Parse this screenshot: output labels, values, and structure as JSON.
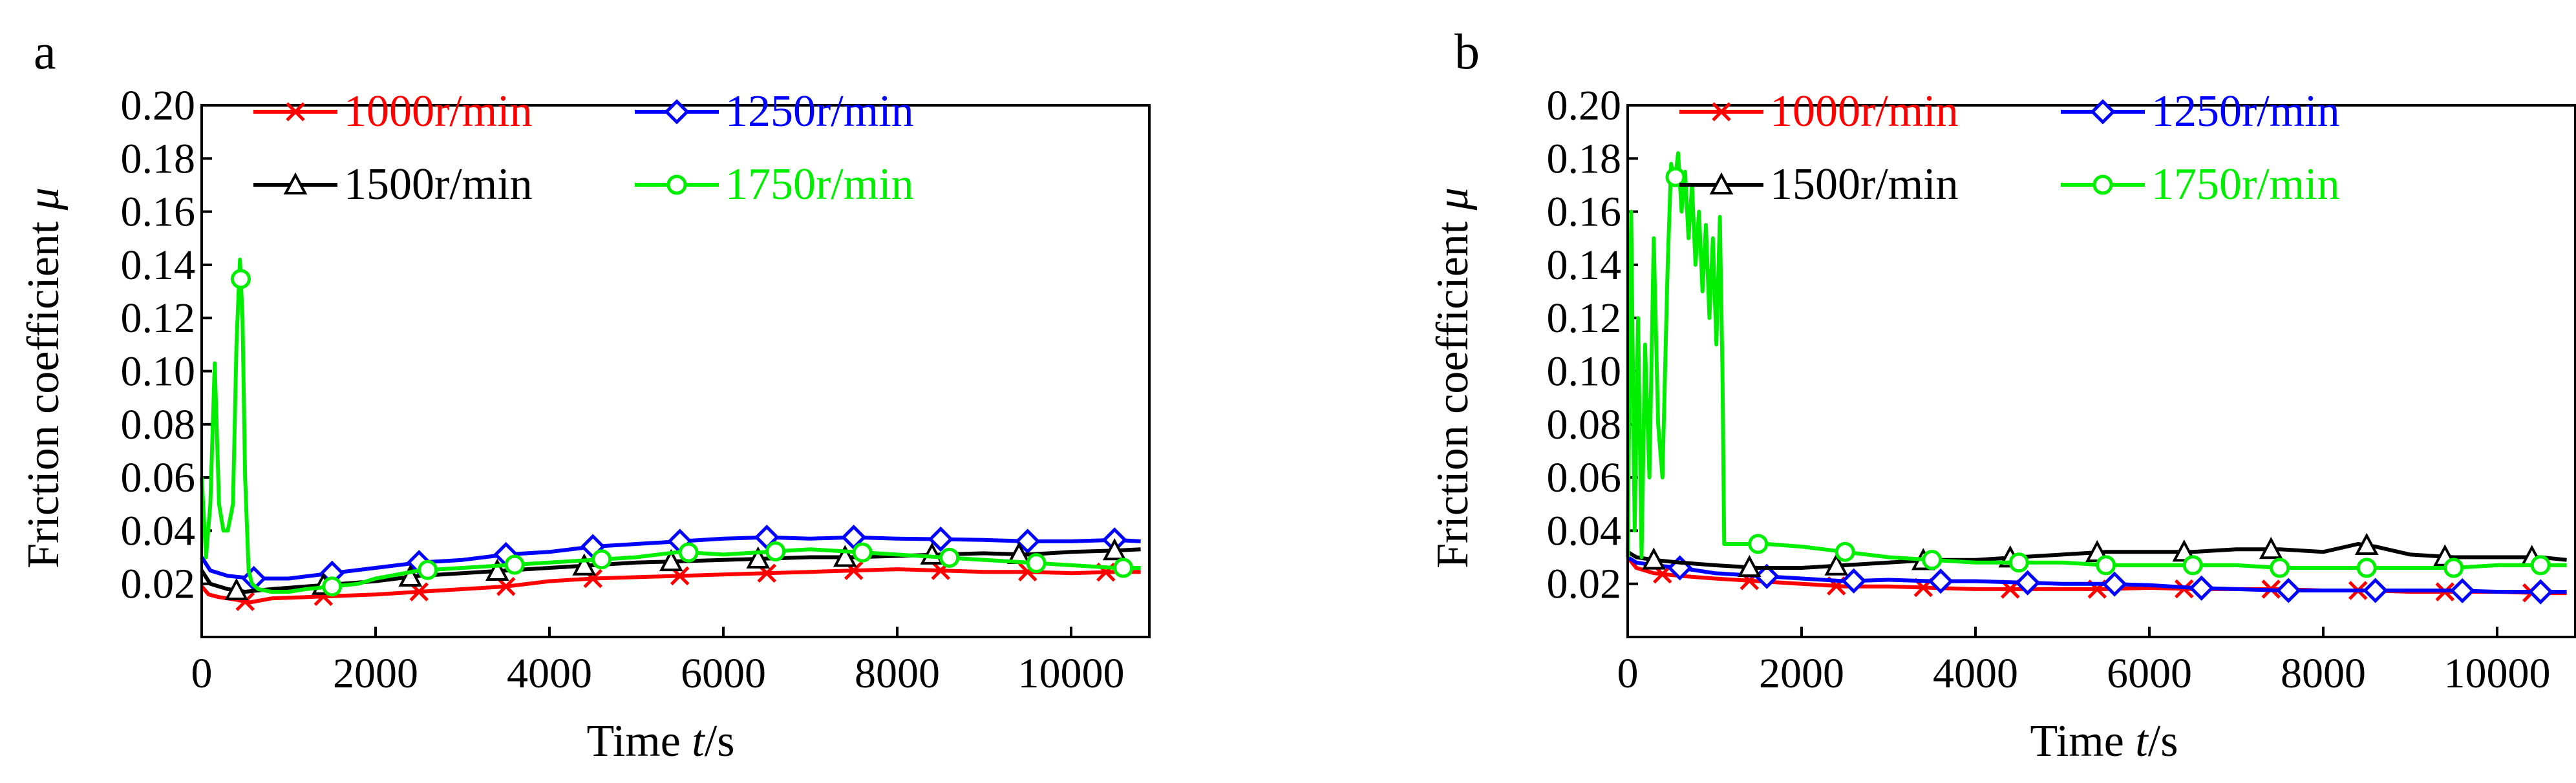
{
  "figure": {
    "panels": [
      "a",
      "b"
    ]
  },
  "chart_data": [
    {
      "panel": "a",
      "type": "line",
      "title": "",
      "xlabel": "Time t/s",
      "xlabel_prefix": "Time ",
      "xlabel_var": "t",
      "xlabel_unit": "/s",
      "ylabel": "Friction coefficient μ",
      "ylabel_prefix": "Friction coefficient ",
      "ylabel_var": "μ",
      "xlim": [
        0,
        10900
      ],
      "ylim": [
        0,
        0.2
      ],
      "xticks": [
        0,
        2000,
        4000,
        6000,
        8000,
        10000
      ],
      "xtick_labels": [
        "0",
        "2000",
        "4000",
        "6000",
        "8000",
        "10000"
      ],
      "yticks": [
        0.02,
        0.04,
        0.06,
        0.08,
        0.1,
        0.12,
        0.14,
        0.16,
        0.18,
        0.2
      ],
      "ytick_labels": [
        "0.02",
        "0.04",
        "0.06",
        "0.08",
        "0.10",
        "0.12",
        "0.14",
        "0.16",
        "0.18",
        "0.20"
      ],
      "legend_position": "top",
      "series": [
        {
          "name": "1000r/min",
          "color": "#ff0000",
          "marker": "x",
          "x": [
            0,
            80,
            200,
            400,
            550,
            800,
            1200,
            1600,
            2000,
            2500,
            3000,
            3500,
            4000,
            4500,
            5000,
            5500,
            6000,
            6500,
            7000,
            7500,
            8000,
            8500,
            9000,
            9500,
            10000,
            10500,
            10800
          ],
          "values": [
            0.019,
            0.016,
            0.015,
            0.014,
            0.013,
            0.0145,
            0.015,
            0.0155,
            0.016,
            0.017,
            0.018,
            0.019,
            0.021,
            0.022,
            0.0225,
            0.023,
            0.0235,
            0.024,
            0.0245,
            0.025,
            0.0255,
            0.025,
            0.0245,
            0.0245,
            0.024,
            0.0245,
            0.0245
          ],
          "marker_x": [
            500,
            1400,
            2500,
            3500,
            4500,
            5500,
            6500,
            7500,
            8500,
            9500,
            10400
          ]
        },
        {
          "name": "1250r/min",
          "color": "#0000ff",
          "marker": "diamond",
          "x": [
            0,
            100,
            300,
            600,
            1000,
            1500,
            2000,
            2500,
            3000,
            3500,
            4000,
            4500,
            5000,
            5500,
            6000,
            6500,
            7000,
            7500,
            8000,
            8500,
            9000,
            9500,
            10000,
            10500,
            10800
          ],
          "values": [
            0.03,
            0.025,
            0.023,
            0.022,
            0.022,
            0.024,
            0.026,
            0.028,
            0.029,
            0.031,
            0.032,
            0.034,
            0.035,
            0.036,
            0.037,
            0.0375,
            0.037,
            0.0375,
            0.037,
            0.0368,
            0.0365,
            0.036,
            0.036,
            0.0365,
            0.036
          ],
          "marker_x": [
            600,
            1500,
            2500,
            3500,
            4500,
            5500,
            6500,
            7500,
            8500,
            9500,
            10500
          ]
        },
        {
          "name": "1500r/min",
          "color": "#000000",
          "marker": "triangle",
          "x": [
            0,
            100,
            300,
            500,
            800,
            1200,
            1600,
            2000,
            2500,
            3000,
            3500,
            4000,
            4500,
            5000,
            5500,
            6000,
            6500,
            7000,
            7500,
            8000,
            8500,
            9000,
            9500,
            10000,
            10500,
            10800
          ],
          "values": [
            0.025,
            0.02,
            0.018,
            0.017,
            0.018,
            0.019,
            0.02,
            0.021,
            0.023,
            0.024,
            0.025,
            0.026,
            0.027,
            0.028,
            0.0285,
            0.029,
            0.0295,
            0.03,
            0.03,
            0.0305,
            0.031,
            0.0315,
            0.031,
            0.032,
            0.0325,
            0.033
          ],
          "marker_x": [
            400,
            1400,
            2400,
            3400,
            4400,
            5400,
            6400,
            7400,
            8400,
            9400,
            10500
          ]
        },
        {
          "name": "1750r/min",
          "color": "#00ee00",
          "marker": "circle",
          "x": [
            0,
            50,
            100,
            150,
            200,
            250,
            300,
            330,
            360,
            400,
            440,
            470,
            500,
            540,
            580,
            650,
            800,
            1000,
            1200,
            1500,
            1800,
            2000,
            2500,
            3000,
            3500,
            4000,
            4500,
            5000,
            5500,
            6000,
            6500,
            7000,
            7500,
            8000,
            8500,
            9000,
            9500,
            10000,
            10500,
            10800
          ],
          "values": [
            0.06,
            0.03,
            0.05,
            0.103,
            0.05,
            0.04,
            0.04,
            0.045,
            0.05,
            0.11,
            0.142,
            0.12,
            0.06,
            0.025,
            0.02,
            0.018,
            0.017,
            0.017,
            0.018,
            0.019,
            0.02,
            0.022,
            0.025,
            0.026,
            0.027,
            0.028,
            0.029,
            0.03,
            0.032,
            0.031,
            0.032,
            0.033,
            0.032,
            0.031,
            0.03,
            0.029,
            0.028,
            0.027,
            0.026,
            0.026
          ],
          "marker_x": [
            450,
            1500,
            2600,
            3600,
            4600,
            5600,
            6600,
            7600,
            8600,
            9600,
            10600
          ]
        }
      ]
    },
    {
      "panel": "b",
      "type": "line",
      "title": "",
      "xlabel": "Time t/s",
      "xlabel_prefix": "Time ",
      "xlabel_var": "t",
      "xlabel_unit": "/s",
      "ylabel": "Friction coefficient μ",
      "ylabel_prefix": "Friction coefficient ",
      "ylabel_var": "μ",
      "xlim": [
        0,
        10900
      ],
      "ylim": [
        0,
        0.2
      ],
      "xticks": [
        0,
        2000,
        4000,
        6000,
        8000,
        10000
      ],
      "xtick_labels": [
        "0",
        "2000",
        "4000",
        "6000",
        "8000",
        "10000"
      ],
      "yticks": [
        0.02,
        0.04,
        0.06,
        0.08,
        0.1,
        0.12,
        0.14,
        0.16,
        0.18,
        0.2
      ],
      "ytick_labels": [
        "0.02",
        "0.04",
        "0.06",
        "0.08",
        "0.10",
        "0.12",
        "0.14",
        "0.16",
        "0.18",
        "0.20"
      ],
      "legend_position": "top",
      "series": [
        {
          "name": "1000r/min",
          "color": "#ff0000",
          "marker": "x",
          "x": [
            0,
            100,
            300,
            600,
            1000,
            1500,
            2000,
            2500,
            3000,
            3500,
            4000,
            4500,
            5000,
            5500,
            6000,
            6500,
            7000,
            7500,
            8000,
            8500,
            9000,
            9500,
            10000,
            10500,
            10800
          ],
          "values": [
            0.03,
            0.026,
            0.024,
            0.023,
            0.022,
            0.021,
            0.02,
            0.019,
            0.019,
            0.0185,
            0.018,
            0.018,
            0.018,
            0.018,
            0.0185,
            0.018,
            0.018,
            0.018,
            0.0175,
            0.0175,
            0.017,
            0.017,
            0.017,
            0.0165,
            0.0165
          ],
          "marker_x": [
            400,
            1400,
            2400,
            3400,
            4400,
            5400,
            6400,
            7400,
            8400,
            9400,
            10400
          ]
        },
        {
          "name": "1250r/min",
          "color": "#0000ff",
          "marker": "diamond",
          "x": [
            0,
            100,
            300,
            600,
            1000,
            1500,
            2000,
            2500,
            3000,
            3500,
            4000,
            4500,
            5000,
            5500,
            6000,
            6500,
            7000,
            7500,
            8000,
            8500,
            9000,
            9500,
            10000,
            10500,
            10800
          ],
          "values": [
            0.03,
            0.028,
            0.027,
            0.026,
            0.024,
            0.023,
            0.022,
            0.021,
            0.0215,
            0.021,
            0.021,
            0.0205,
            0.02,
            0.02,
            0.0195,
            0.0185,
            0.018,
            0.0175,
            0.0175,
            0.0175,
            0.0175,
            0.0175,
            0.017,
            0.017,
            0.017
          ],
          "marker_x": [
            600,
            1600,
            2600,
            3600,
            4600,
            5600,
            6600,
            7600,
            8600,
            9600,
            10500
          ]
        },
        {
          "name": "1500r/min",
          "color": "#000000",
          "marker": "triangle",
          "x": [
            0,
            100,
            300,
            600,
            1000,
            1500,
            2000,
            2500,
            3000,
            3500,
            4000,
            4500,
            5000,
            5500,
            6000,
            6500,
            7000,
            7500,
            8000,
            8400,
            8600,
            9000,
            9500,
            10000,
            10500,
            10800
          ],
          "values": [
            0.032,
            0.03,
            0.029,
            0.028,
            0.027,
            0.026,
            0.026,
            0.027,
            0.028,
            0.029,
            0.029,
            0.03,
            0.031,
            0.032,
            0.032,
            0.032,
            0.033,
            0.033,
            0.032,
            0.035,
            0.034,
            0.031,
            0.03,
            0.03,
            0.03,
            0.029
          ],
          "marker_x": [
            300,
            1400,
            2400,
            3400,
            4400,
            5400,
            6400,
            7400,
            8500,
            9400,
            10400
          ]
        },
        {
          "name": "1750r/min",
          "color": "#00ee00",
          "marker": "circle",
          "x": [
            0,
            40,
            80,
            120,
            160,
            200,
            250,
            300,
            350,
            400,
            430,
            460,
            500,
            540,
            580,
            620,
            660,
            700,
            740,
            780,
            820,
            860,
            900,
            940,
            980,
            1020,
            1060,
            1090,
            1110,
            1150,
            1300,
            1600,
            2000,
            2500,
            3000,
            3500,
            4000,
            4500,
            5000,
            5500,
            6000,
            6500,
            7000,
            7500,
            8000,
            8500,
            9000,
            9500,
            10000,
            10500,
            10800
          ],
          "values": [
            0.03,
            0.16,
            0.04,
            0.12,
            0.03,
            0.11,
            0.06,
            0.15,
            0.08,
            0.06,
            0.1,
            0.14,
            0.178,
            0.17,
            0.182,
            0.16,
            0.175,
            0.15,
            0.17,
            0.14,
            0.16,
            0.13,
            0.155,
            0.12,
            0.15,
            0.11,
            0.158,
            0.1,
            0.035,
            0.035,
            0.035,
            0.035,
            0.034,
            0.032,
            0.03,
            0.029,
            0.028,
            0.028,
            0.028,
            0.027,
            0.027,
            0.027,
            0.027,
            0.026,
            0.026,
            0.026,
            0.026,
            0.026,
            0.027,
            0.027,
            0.027
          ],
          "marker_x": [
            550,
            1500,
            2500,
            3500,
            4500,
            5500,
            6500,
            7500,
            8500,
            9500,
            10500
          ]
        }
      ]
    }
  ]
}
